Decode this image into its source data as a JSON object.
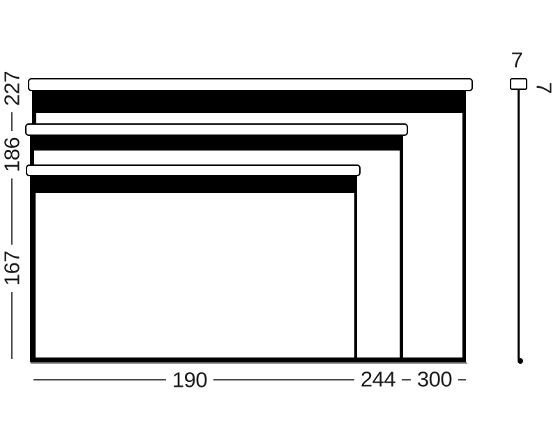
{
  "screens": [
    {
      "id": "300",
      "width_label": "300",
      "height_label": "227"
    },
    {
      "id": "244",
      "width_label": "244",
      "height_label": "186"
    },
    {
      "id": "190",
      "width_label": "190",
      "height_label": "167"
    }
  ],
  "side_view": {
    "width_label": "7",
    "depth_label": "7"
  },
  "colors": {
    "outline": "#000000",
    "fill": "#ffffff",
    "dimension_line": "#474747",
    "underline_gray": "#8f8f8f"
  }
}
